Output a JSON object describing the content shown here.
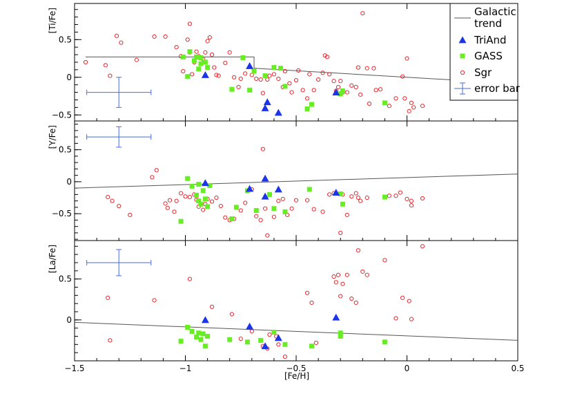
{
  "chart_data": {
    "type": "scatter",
    "xlabel": "[Fe/H]",
    "xlim": [
      -1.5,
      0.5
    ],
    "x_ticks": [
      -1.5,
      -1,
      -0.5,
      0,
      0.5
    ],
    "x_tick_labels": [
      "−1.5",
      "−1",
      "−0.5",
      "0",
      "0.5"
    ],
    "colors": {
      "trend": "#555555",
      "triand": "#1c34e8",
      "gass": "#66ee22",
      "sgr": "#e8262c",
      "error": "#4a6ad8"
    },
    "legend": {
      "position": "top-right",
      "entries": [
        {
          "key": "trend",
          "label": "Galactic\ntrend"
        },
        {
          "key": "triand",
          "label": "TriAnd"
        },
        {
          "key": "gass",
          "label": "GASS"
        },
        {
          "key": "sgr",
          "label": "Sgr"
        },
        {
          "key": "error",
          "label": "error bar"
        }
      ]
    },
    "panels": [
      {
        "ylabel": "[Ti/Fe]",
        "ylim": [
          -0.58,
          0.98
        ],
        "y_ticks": [
          -0.5,
          0,
          0.5
        ],
        "y_tick_labels": [
          "−0.5",
          "0",
          "0.5"
        ],
        "trend": [
          {
            "x": -1.45,
            "y": 0.27
          },
          {
            "x": -0.69,
            "y": 0.27
          },
          {
            "x": -0.69,
            "y": 0.12
          },
          {
            "x": 0.35,
            "y": -0.06
          }
        ],
        "error_bar": {
          "x": -1.3,
          "y": -0.2,
          "xerr": 0.145,
          "yerr": 0.2
        },
        "triand": [
          [
            -0.91,
            0.03
          ],
          [
            -0.71,
            0.15
          ],
          [
            -0.63,
            -0.33
          ],
          [
            -0.64,
            -0.41
          ],
          [
            -0.58,
            -0.47
          ],
          [
            -0.32,
            -0.2
          ]
        ],
        "gass": [
          [
            -1.01,
            0.27
          ],
          [
            -0.98,
            0.34
          ],
          [
            -0.96,
            0.22
          ],
          [
            -0.95,
            0.27
          ],
          [
            -0.93,
            0.26
          ],
          [
            -0.93,
            0.18
          ],
          [
            -0.91,
            0.2
          ],
          [
            -0.94,
            0.11
          ],
          [
            -0.9,
            0.13
          ],
          [
            -0.99,
            0.01
          ],
          [
            -0.74,
            0.26
          ],
          [
            -0.71,
            -0.17
          ],
          [
            -0.69,
            0.08
          ],
          [
            -0.64,
            0.02
          ],
          [
            -0.6,
            0.13
          ],
          [
            -0.57,
            0.12
          ],
          [
            -0.55,
            -0.12
          ],
          [
            -0.45,
            -0.42
          ],
          [
            -0.43,
            -0.36
          ],
          [
            -0.3,
            -0.22
          ],
          [
            -0.29,
            -0.18
          ],
          [
            -0.1,
            -0.34
          ],
          [
            -0.79,
            -0.16
          ]
        ],
        "sgr": [
          [
            -1.45,
            0.2
          ],
          [
            -1.36,
            0.16
          ],
          [
            -1.34,
            0.02
          ],
          [
            -1.31,
            0.55
          ],
          [
            -1.29,
            0.46
          ],
          [
            -1.22,
            0.23
          ],
          [
            -1.14,
            0.54
          ],
          [
            -1.09,
            0.54
          ],
          [
            -1.04,
            0.4
          ],
          [
            -1.02,
            0.28
          ],
          [
            -1.01,
            0.08
          ],
          [
            -0.99,
            0.5
          ],
          [
            -0.98,
            0.71
          ],
          [
            -0.98,
            0.33
          ],
          [
            -0.97,
            0.04
          ],
          [
            -0.96,
            0.2
          ],
          [
            -0.95,
            0.34
          ],
          [
            -0.94,
            0.28
          ],
          [
            -0.92,
            0.24
          ],
          [
            -0.91,
            0.33
          ],
          [
            -0.9,
            0.48
          ],
          [
            -0.89,
            0.53
          ],
          [
            -0.88,
            0.3
          ],
          [
            -0.87,
            0.13
          ],
          [
            -0.86,
            0.03
          ],
          [
            -0.85,
            0.02
          ],
          [
            -0.82,
            0.19
          ],
          [
            -0.8,
            0.33
          ],
          [
            -0.78,
            0.0
          ],
          [
            -0.76,
            -0.13
          ],
          [
            -0.75,
            -0.02
          ],
          [
            -0.73,
            0.05
          ],
          [
            -0.7,
            0.03
          ],
          [
            -0.68,
            -0.02
          ],
          [
            -0.66,
            -0.03
          ],
          [
            -0.65,
            -0.21
          ],
          [
            -0.63,
            -0.03
          ],
          [
            -0.62,
            0.02
          ],
          [
            -0.6,
            0.04
          ],
          [
            -0.58,
            -0.02
          ],
          [
            -0.56,
            -0.13
          ],
          [
            -0.55,
            0.08
          ],
          [
            -0.53,
            -0.08
          ],
          [
            -0.52,
            -0.2
          ],
          [
            -0.5,
            -0.04
          ],
          [
            -0.49,
            0.09
          ],
          [
            -0.47,
            -0.17
          ],
          [
            -0.45,
            -0.28
          ],
          [
            -0.44,
            0.04
          ],
          [
            -0.42,
            -0.17
          ],
          [
            -0.4,
            -0.03
          ],
          [
            -0.38,
            0.06
          ],
          [
            -0.37,
            0.29
          ],
          [
            -0.36,
            0.27
          ],
          [
            -0.35,
            0.04
          ],
          [
            -0.33,
            -0.05
          ],
          [
            -0.32,
            -0.18
          ],
          [
            -0.31,
            -0.13
          ],
          [
            -0.3,
            -0.05
          ],
          [
            -0.29,
            -0.2
          ],
          [
            -0.27,
            -0.2
          ],
          [
            -0.25,
            -0.11
          ],
          [
            -0.23,
            -0.13
          ],
          [
            -0.22,
            0.13
          ],
          [
            -0.21,
            -0.23
          ],
          [
            -0.2,
            0.85
          ],
          [
            -0.18,
            0.12
          ],
          [
            -0.17,
            -0.35
          ],
          [
            -0.15,
            0.12
          ],
          [
            -0.14,
            -0.17
          ],
          [
            -0.12,
            -0.16
          ],
          [
            -0.08,
            -0.38
          ],
          [
            -0.05,
            -0.28
          ],
          [
            -0.02,
            0.01
          ],
          [
            -0.01,
            -0.28
          ],
          [
            0.0,
            0.25
          ],
          [
            0.01,
            -0.45
          ],
          [
            0.02,
            -0.34
          ],
          [
            0.03,
            -0.4
          ],
          [
            0.07,
            -0.38
          ]
        ]
      },
      {
        "ylabel": "[Y/Fe]",
        "ylim": [
          -0.92,
          0.95
        ],
        "y_ticks": [
          -0.5,
          0,
          0.5
        ],
        "y_tick_labels": [
          "−0.5",
          "0",
          "0.5"
        ],
        "trend": [
          {
            "x": -1.5,
            "y": -0.1
          },
          {
            "x": 0.5,
            "y": 0.12
          }
        ],
        "error_bar": {
          "x": -1.3,
          "y": 0.7,
          "xerr": 0.145,
          "yerr": 0.16
        },
        "triand": [
          [
            -0.91,
            -0.02
          ],
          [
            -0.71,
            -0.11
          ],
          [
            -0.64,
            0.05
          ],
          [
            -0.64,
            -0.23
          ],
          [
            -0.58,
            -0.12
          ],
          [
            -0.32,
            -0.17
          ]
        ],
        "gass": [
          [
            -1.02,
            -0.62
          ],
          [
            -0.99,
            0.05
          ],
          [
            -0.97,
            -0.07
          ],
          [
            -0.95,
            -0.21
          ],
          [
            -0.94,
            -0.3
          ],
          [
            -0.94,
            -0.04
          ],
          [
            -0.93,
            -0.35
          ],
          [
            -0.92,
            -0.14
          ],
          [
            -0.91,
            -0.27
          ],
          [
            -0.9,
            -0.39
          ],
          [
            -0.89,
            -0.06
          ],
          [
            -0.79,
            -0.58
          ],
          [
            -0.77,
            -0.4
          ],
          [
            -0.72,
            -0.14
          ],
          [
            -0.68,
            -0.45
          ],
          [
            -0.62,
            -0.2
          ],
          [
            -0.6,
            -0.42
          ],
          [
            -0.55,
            -0.47
          ],
          [
            -0.44,
            -0.12
          ],
          [
            -0.3,
            -0.19
          ],
          [
            -0.29,
            -0.35
          ],
          [
            -0.1,
            -0.24
          ]
        ],
        "sgr": [
          [
            -1.35,
            -0.24
          ],
          [
            -1.33,
            -0.3
          ],
          [
            -1.3,
            -0.38
          ],
          [
            -1.25,
            -0.52
          ],
          [
            -1.15,
            0.07
          ],
          [
            -1.13,
            0.18
          ],
          [
            -1.09,
            -0.34
          ],
          [
            -1.08,
            -0.41
          ],
          [
            -1.07,
            -0.29
          ],
          [
            -1.05,
            -0.47
          ],
          [
            -1.04,
            -0.3
          ],
          [
            -1.02,
            -0.18
          ],
          [
            -1.0,
            -0.23
          ],
          [
            -0.98,
            -0.24
          ],
          [
            -0.96,
            -0.2
          ],
          [
            -0.95,
            -0.28
          ],
          [
            -0.94,
            -0.39
          ],
          [
            -0.92,
            -0.44
          ],
          [
            -0.91,
            -0.35
          ],
          [
            -0.9,
            -0.27
          ],
          [
            -0.88,
            -0.31
          ],
          [
            -0.86,
            -0.25
          ],
          [
            -0.84,
            -0.38
          ],
          [
            -0.82,
            -0.56
          ],
          [
            -0.8,
            -0.6
          ],
          [
            -0.78,
            -0.58
          ],
          [
            -0.75,
            -0.45
          ],
          [
            -0.73,
            -0.33
          ],
          [
            -0.7,
            -0.12
          ],
          [
            -0.68,
            -0.54
          ],
          [
            -0.66,
            -0.6
          ],
          [
            -0.65,
            0.51
          ],
          [
            -0.64,
            -0.42
          ],
          [
            -0.63,
            -0.84
          ],
          [
            -0.6,
            -0.55
          ],
          [
            -0.58,
            -0.3
          ],
          [
            -0.56,
            -0.27
          ],
          [
            -0.54,
            -0.52
          ],
          [
            -0.52,
            -0.42
          ],
          [
            -0.5,
            -0.29
          ],
          [
            -0.45,
            -0.29
          ],
          [
            -0.42,
            -0.43
          ],
          [
            -0.38,
            -0.47
          ],
          [
            -0.35,
            -0.2
          ],
          [
            -0.33,
            -0.18
          ],
          [
            -0.3,
            -0.8
          ],
          [
            -0.29,
            -0.2
          ],
          [
            -0.27,
            -0.52
          ],
          [
            -0.25,
            -0.23
          ],
          [
            -0.23,
            -0.18
          ],
          [
            -0.22,
            -0.25
          ],
          [
            -0.21,
            -0.3
          ],
          [
            -0.18,
            -0.25
          ],
          [
            -0.08,
            -0.22
          ],
          [
            -0.05,
            -0.22
          ],
          [
            -0.03,
            -0.17
          ],
          [
            0.0,
            -0.27
          ],
          [
            0.02,
            -0.3
          ],
          [
            0.02,
            -0.37
          ],
          [
            0.07,
            -0.26
          ]
        ]
      },
      {
        "ylabel": "[La/Fe]",
        "ylim": [
          -0.5,
          0.97
        ],
        "y_ticks": [
          0,
          0.5
        ],
        "y_tick_labels": [
          "0",
          "0.5"
        ],
        "trend": [
          {
            "x": -1.5,
            "y": -0.03
          },
          {
            "x": 0.5,
            "y": -0.25
          }
        ],
        "error_bar": {
          "x": -1.3,
          "y": 0.7,
          "xerr": 0.145,
          "yerr": 0.16
        },
        "triand": [
          [
            -0.91,
            0.0
          ],
          [
            -0.71,
            -0.08
          ],
          [
            -0.64,
            -0.32
          ],
          [
            -0.58,
            -0.22
          ],
          [
            -0.32,
            0.03
          ]
        ],
        "gass": [
          [
            -1.02,
            -0.26
          ],
          [
            -0.99,
            -0.09
          ],
          [
            -0.97,
            -0.14
          ],
          [
            -0.95,
            -0.21
          ],
          [
            -0.94,
            -0.16
          ],
          [
            -0.93,
            -0.24
          ],
          [
            -0.92,
            -0.17
          ],
          [
            -0.91,
            -0.32
          ],
          [
            -0.9,
            -0.2
          ],
          [
            -0.8,
            -0.24
          ],
          [
            -0.72,
            -0.27
          ],
          [
            -0.66,
            -0.25
          ],
          [
            -0.6,
            -0.15
          ],
          [
            -0.55,
            -0.3
          ],
          [
            -0.43,
            -0.32
          ],
          [
            -0.3,
            -0.2
          ],
          [
            -0.3,
            -0.16
          ],
          [
            -0.1,
            -0.27
          ]
        ],
        "sgr": [
          [
            -1.35,
            0.27
          ],
          [
            -1.34,
            -0.25
          ],
          [
            -1.14,
            0.24
          ],
          [
            -0.98,
            0.5
          ],
          [
            -0.88,
            0.16
          ],
          [
            -0.79,
            0.07
          ],
          [
            -0.75,
            -0.23
          ],
          [
            -0.7,
            -0.14
          ],
          [
            -0.65,
            -0.32
          ],
          [
            -0.63,
            -0.35
          ],
          [
            -0.62,
            -0.18
          ],
          [
            -0.59,
            -0.2
          ],
          [
            -0.58,
            -0.3
          ],
          [
            -0.55,
            -0.45
          ],
          [
            -0.45,
            0.33
          ],
          [
            -0.43,
            0.21
          ],
          [
            -0.41,
            -0.28
          ],
          [
            -0.33,
            0.53
          ],
          [
            -0.32,
            0.46
          ],
          [
            -0.31,
            0.55
          ],
          [
            -0.3,
            0.29
          ],
          [
            -0.29,
            0.44
          ],
          [
            -0.27,
            0.55
          ],
          [
            -0.25,
            0.26
          ],
          [
            -0.23,
            0.21
          ],
          [
            -0.22,
            0.85
          ],
          [
            -0.2,
            0.59
          ],
          [
            -0.18,
            0.55
          ],
          [
            -0.1,
            0.73
          ],
          [
            -0.05,
            0.02
          ],
          [
            -0.02,
            0.27
          ],
          [
            0.01,
            0.23
          ],
          [
            0.02,
            0.01
          ],
          [
            0.07,
            0.9
          ]
        ]
      }
    ]
  }
}
